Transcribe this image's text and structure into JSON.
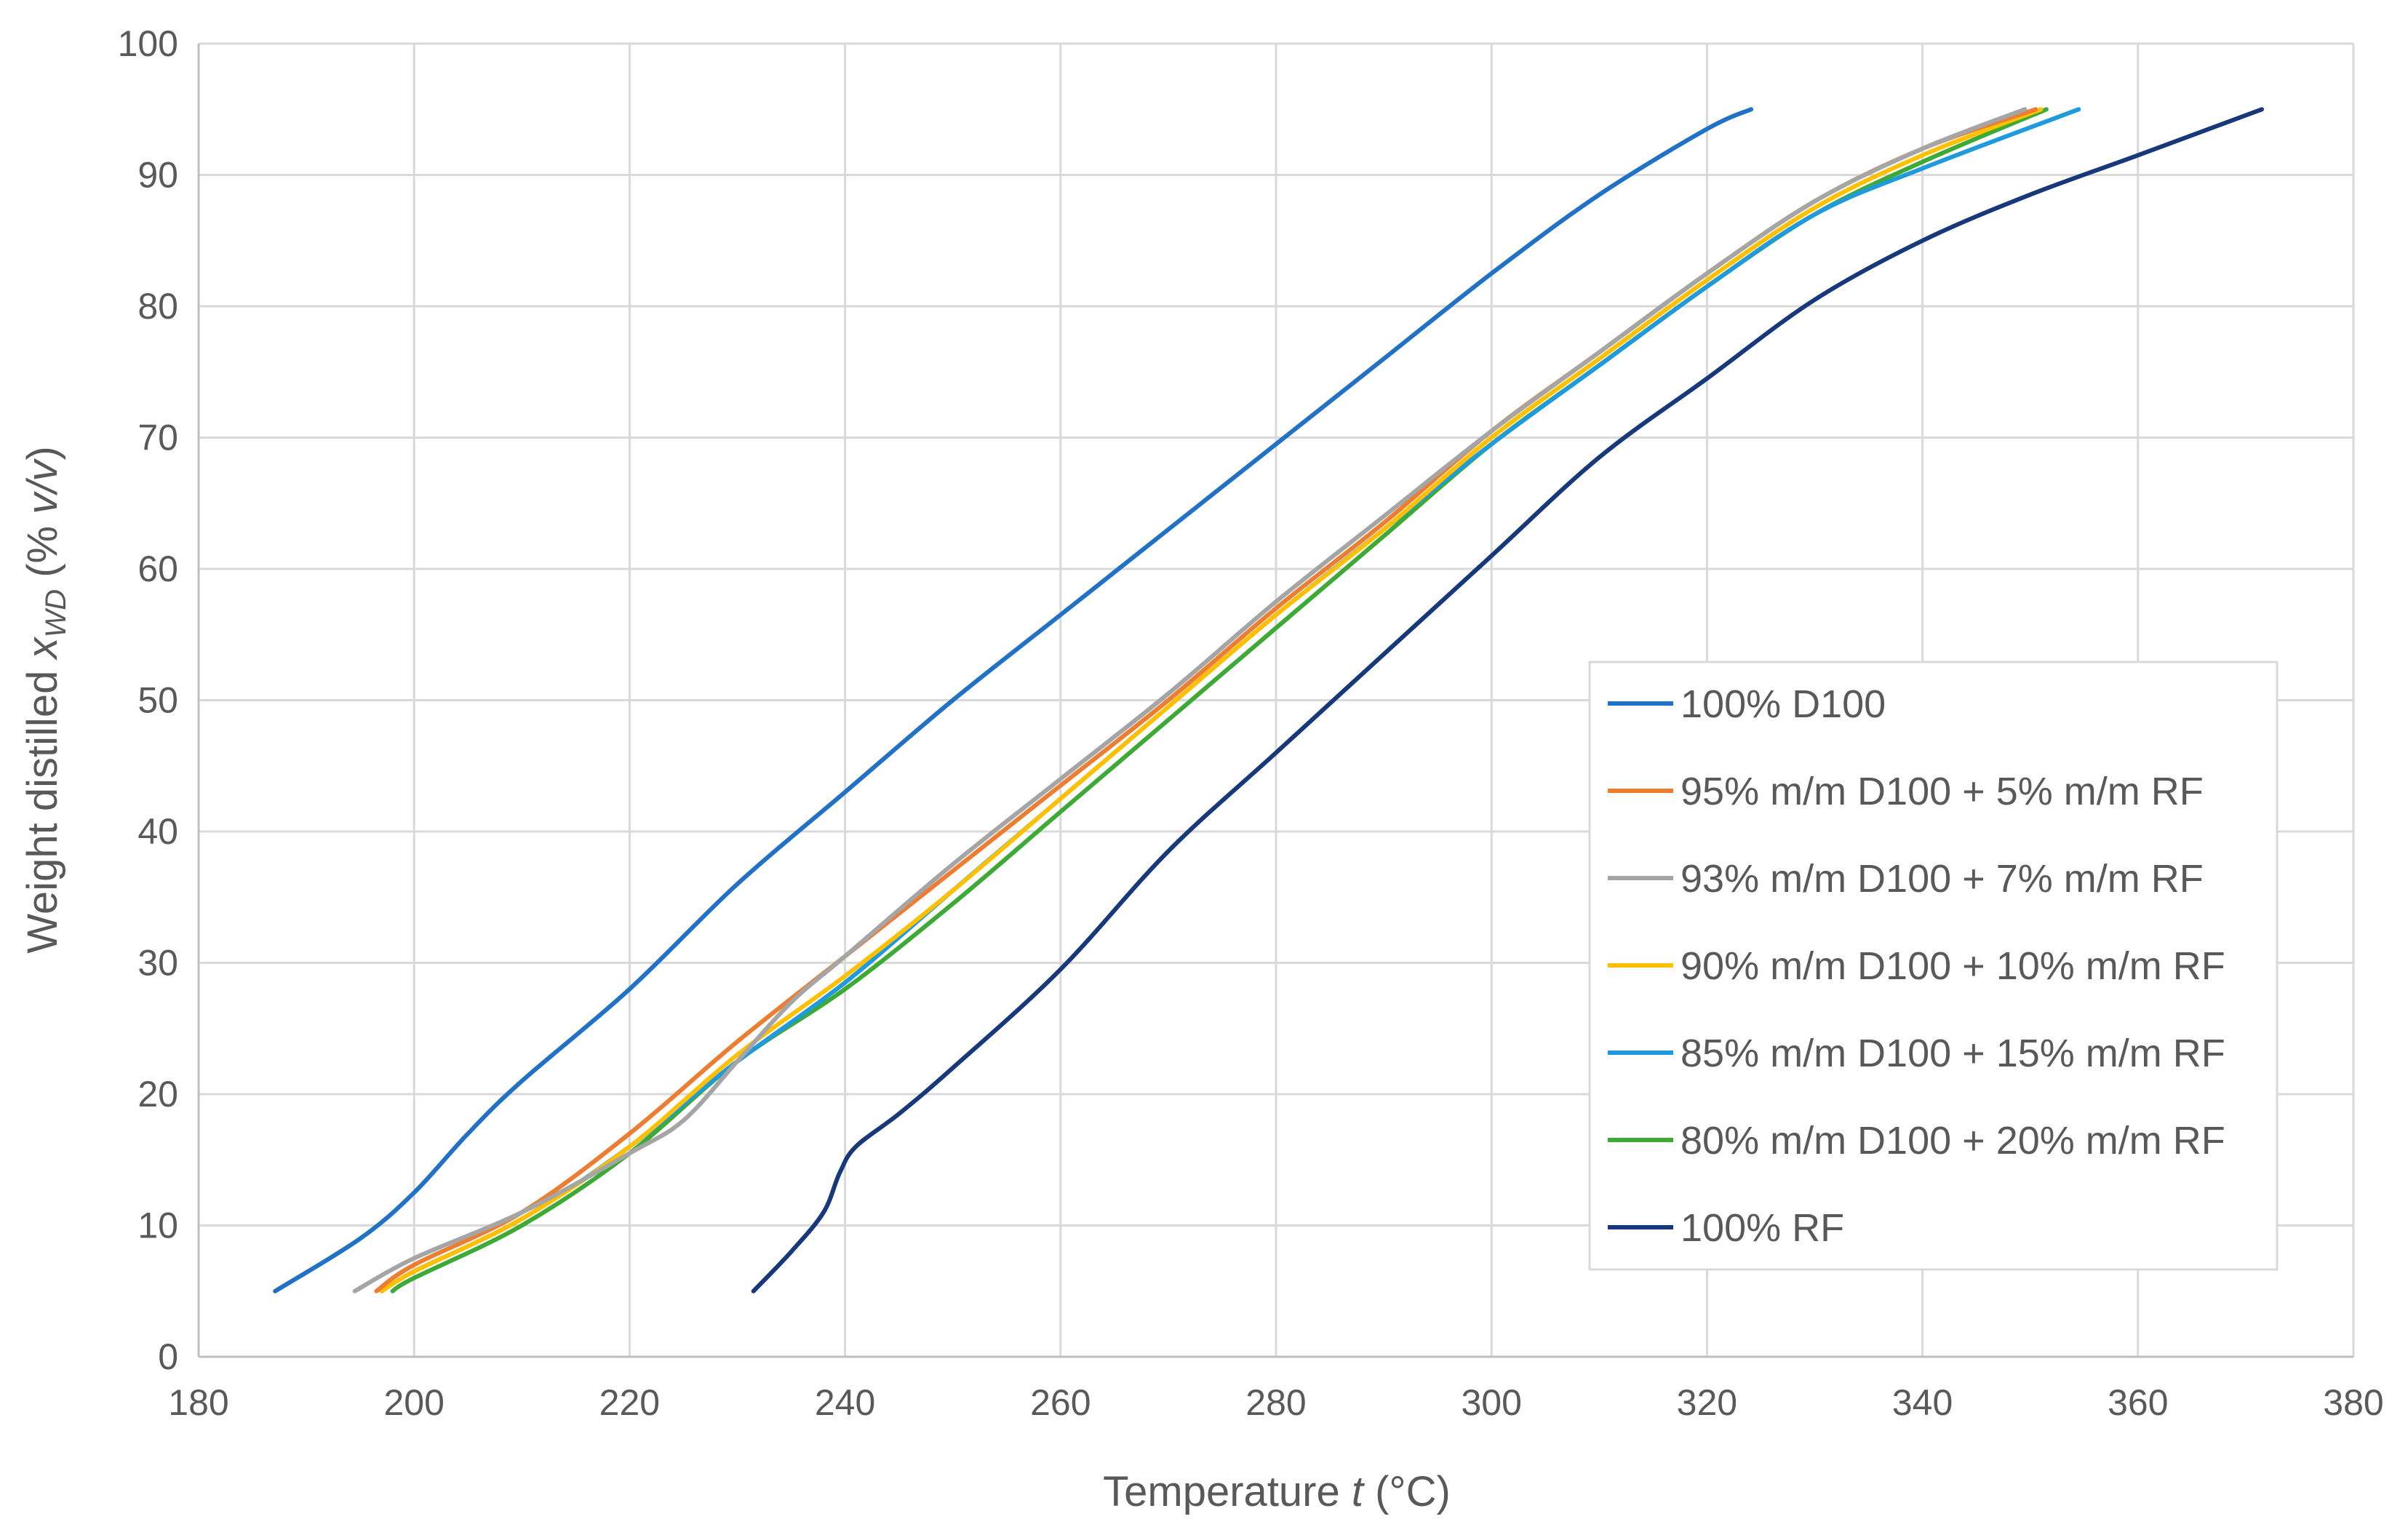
{
  "chart_data": {
    "type": "line",
    "title": "",
    "xlabel": {
      "prefix": "Temperature ",
      "var": "t",
      "suffix": " (°C)"
    },
    "ylabel": {
      "prefix": "Weight distilled ",
      "var": "x",
      "sub": "WD",
      "suffix_open": " (% ",
      "suffix_var": "v/v",
      "suffix_close": ")"
    },
    "xlim": [
      180,
      380
    ],
    "ylim": [
      0,
      100
    ],
    "xticks": [
      180,
      200,
      220,
      240,
      260,
      280,
      300,
      320,
      340,
      360,
      380
    ],
    "yticks": [
      0,
      10,
      20,
      30,
      40,
      50,
      60,
      70,
      80,
      90,
      100
    ],
    "xtick_labels": [
      "180",
      "200",
      "220",
      "240",
      "260",
      "280",
      "300",
      "320",
      "340",
      "360",
      "380"
    ],
    "ytick_labels": [
      "0",
      "10",
      "20",
      "30",
      "40",
      "50",
      "60",
      "70",
      "80",
      "90",
      "100"
    ],
    "grid": true,
    "legend_position": "right",
    "series": [
      {
        "name": "100% D100",
        "color": "#2171C7",
        "x": [
          187.1,
          195,
          200,
          205,
          210,
          220,
          230,
          240,
          250,
          260,
          270,
          280,
          290,
          300,
          310,
          320,
          324.1
        ],
        "y": [
          5,
          9,
          12.5,
          17,
          21,
          28,
          36,
          43,
          50,
          56.5,
          63,
          69.5,
          76,
          82.5,
          88.5,
          93.5,
          95
        ]
      },
      {
        "name": "95% m/m D100 + 5% m/m RF",
        "color": "#ED7D31",
        "x": [
          196.5,
          200,
          210,
          220,
          230,
          240,
          250,
          260,
          270,
          280,
          290,
          300,
          310,
          320,
          330,
          340,
          350.5
        ],
        "y": [
          5,
          7,
          11,
          17,
          24,
          30.5,
          37,
          43.5,
          50,
          57,
          63.5,
          70.5,
          76.5,
          82.5,
          88,
          92,
          95
        ]
      },
      {
        "name": "93% m/m D100 + 7% m/m RF",
        "color": "#A5A5A5",
        "x": [
          194.5,
          200,
          210,
          220,
          225,
          230,
          235,
          240,
          250,
          260,
          270,
          280,
          290,
          300,
          310,
          320,
          330,
          340,
          349.5
        ],
        "y": [
          5,
          7.5,
          11,
          15.5,
          18,
          22.5,
          27,
          30.5,
          37.5,
          44,
          50.5,
          57.5,
          64,
          70.5,
          76.5,
          82.5,
          88,
          92,
          95
        ]
      },
      {
        "name": "90% m/m D100 + 10% m/m RF",
        "color": "#FFC000",
        "x": [
          197,
          200,
          210,
          220,
          230,
          240,
          250,
          260,
          270,
          280,
          290,
          300,
          310,
          320,
          330,
          340,
          351
        ],
        "y": [
          5,
          6.5,
          10.5,
          16,
          23,
          29,
          35.5,
          42.5,
          49.5,
          56.5,
          63,
          70,
          76,
          82,
          87.5,
          91.5,
          95
        ]
      },
      {
        "name": "85% m/m D100 + 15% m/m RF",
        "color": "#1F9BDD",
        "x": [
          197,
          200,
          210,
          220,
          230,
          240,
          250,
          260,
          270,
          280,
          290,
          300,
          310,
          320,
          330,
          340,
          354.5
        ],
        "y": [
          5,
          6.5,
          10.5,
          16,
          22.5,
          28.5,
          35.5,
          42.5,
          49.5,
          56.5,
          63,
          69.5,
          75.5,
          81.5,
          87,
          90.5,
          95
        ]
      },
      {
        "name": "80% m/m D100 + 20% m/m RF",
        "color": "#3DAA35",
        "x": [
          198,
          200,
          210,
          220,
          230,
          240,
          250,
          260,
          270,
          280,
          290,
          300,
          310,
          320,
          330,
          340,
          351.5
        ],
        "y": [
          5,
          6,
          10,
          15.5,
          22.5,
          28,
          34.5,
          41.5,
          48.5,
          55.5,
          62.5,
          69.5,
          75.5,
          81.5,
          87,
          91,
          95
        ]
      },
      {
        "name": "100% RF",
        "color": "#17387A",
        "x": [
          231.5,
          235,
          238,
          239.5,
          241,
          245,
          250,
          260,
          270,
          280,
          290,
          300,
          310,
          320,
          330,
          340,
          350,
          360,
          371.5
        ],
        "y": [
          5,
          8,
          11,
          14,
          16,
          18.5,
          22,
          29.5,
          38.5,
          46,
          53.5,
          61,
          68.5,
          74.5,
          80.5,
          85,
          88.5,
          91.5,
          95
        ]
      }
    ]
  }
}
